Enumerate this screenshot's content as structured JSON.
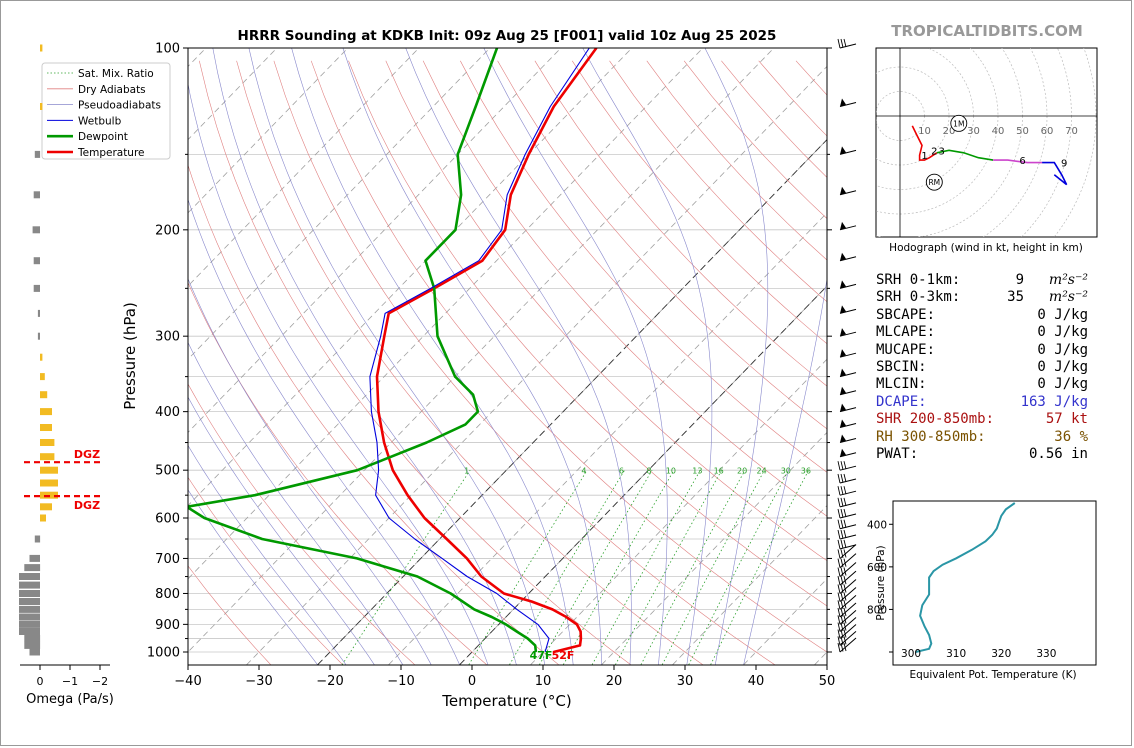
{
  "title": "HRRR Sounding at KDKB Init: 09z Aug 25 [F001] valid 10z Aug 25 2025",
  "brand": "TROPICALTIDBITS.COM",
  "skewt": {
    "xlabel": "Temperature (°C)",
    "ylabel": "Pressure (hPa)",
    "xticks": [
      "−40",
      "−30",
      "−20",
      "−10",
      "0",
      "10",
      "20",
      "30",
      "40",
      "50"
    ],
    "yticks": [
      "100",
      "200",
      "300",
      "400",
      "500",
      "600",
      "700",
      "800",
      "900",
      "1000"
    ],
    "surface_dewpoint_label": "47F",
    "surface_temp_label": "52F",
    "mixing_ratio_labels": [
      "1",
      "4",
      "6",
      "8",
      "10",
      "13",
      "16",
      "20",
      "24",
      "30",
      "36"
    ],
    "legend": [
      {
        "label": "Sat. Mix. Ratio",
        "color": "#2ca02c",
        "style": "dotted"
      },
      {
        "label": "Dry Adiabats",
        "color": "#e08080",
        "style": "solid-thin"
      },
      {
        "label": "Pseudoadiabats",
        "color": "#8888cc",
        "style": "solid-thin"
      },
      {
        "label": "Wetbulb",
        "color": "#0000dd",
        "style": "solid"
      },
      {
        "label": "Dewpoint",
        "color": "#009900",
        "style": "thick"
      },
      {
        "label": "Temperature",
        "color": "#ee0000",
        "style": "thick"
      }
    ]
  },
  "omega": {
    "xlabel": "Omega (Pa/s)",
    "xticks": [
      "0",
      "−1",
      "−2"
    ],
    "dgz_label_top": "DGZ",
    "dgz_label_bottom": "DGZ"
  },
  "hodograph": {
    "caption": "Hodograph (wind in kt, height in km)",
    "ring_labels": [
      "10",
      "20",
      "30",
      "40",
      "50",
      "60",
      "70"
    ],
    "marker_1m": "1M",
    "marker_rm": "RM",
    "height_labels": [
      "1",
      "2",
      "3",
      "6",
      "9"
    ]
  },
  "theta_e": {
    "xlabel": "Equivalent Pot. Temperature (K)",
    "ylabel": "Pressure (hPa)",
    "xticks": [
      "300",
      "310",
      "320",
      "330"
    ],
    "yticks": [
      "400",
      "600",
      "800"
    ]
  },
  "stats": [
    {
      "label": "SRH 0-1km:",
      "value": "9",
      "unit": "m²s⁻²",
      "color": "#000000"
    },
    {
      "label": "SRH 0-3km:",
      "value": "35",
      "unit": "m²s⁻²",
      "color": "#000000"
    },
    {
      "label": "SBCAPE:",
      "value": "0 J/kg",
      "unit": "",
      "color": "#000000"
    },
    {
      "label": "MLCAPE:",
      "value": "0 J/kg",
      "unit": "",
      "color": "#000000"
    },
    {
      "label": "MUCAPE:",
      "value": "0 J/kg",
      "unit": "",
      "color": "#000000"
    },
    {
      "label": "SBCIN:",
      "value": "0 J/kg",
      "unit": "",
      "color": "#000000"
    },
    {
      "label": "MLCIN:",
      "value": "0 J/kg",
      "unit": "",
      "color": "#000000"
    },
    {
      "label": "DCAPE:",
      "value": "163 J/kg",
      "unit": "",
      "color": "#3333cc"
    },
    {
      "label": "SHR 200-850mb:",
      "value": "57 kt",
      "unit": "",
      "color": "#aa1111"
    },
    {
      "label": "RH 300-850mb:",
      "value": "36 %",
      "unit": "",
      "color": "#7a5200"
    },
    {
      "label": "PWAT:",
      "value": "0.56 in",
      "unit": "",
      "color": "#000000"
    }
  ],
  "chart_data": [
    {
      "type": "line",
      "title": "HRRR Sounding at KDKB Init: 09z Aug 25 [F001] valid 10z Aug 25 2025",
      "xlabel": "Temperature (°C)",
      "ylabel": "Pressure (hPa)",
      "xlim": [
        -40,
        50
      ],
      "ylim": [
        1050,
        100
      ],
      "log_y": true,
      "skew": true,
      "series": [
        {
          "name": "Temperature",
          "color": "#ee0000",
          "points": [
            [
              1000,
              11.5
            ],
            [
              975,
              14.3
            ],
            [
              950,
              13.5
            ],
            [
              925,
              12.5
            ],
            [
              900,
              11
            ],
            [
              875,
              8.5
            ],
            [
              850,
              5.5
            ],
            [
              825,
              1.5
            ],
            [
              800,
              -3.5
            ],
            [
              750,
              -9
            ],
            [
              700,
              -13.5
            ],
            [
              650,
              -19
            ],
            [
              600,
              -25
            ],
            [
              550,
              -30.5
            ],
            [
              500,
              -36
            ],
            [
              450,
              -41
            ],
            [
              400,
              -46
            ],
            [
              350,
              -51
            ],
            [
              300,
              -55.5
            ],
            [
              275,
              -58
            ],
            [
              250,
              -55
            ],
            [
              225,
              -52
            ],
            [
              200,
              -53
            ],
            [
              175,
              -57
            ],
            [
              150,
              -60
            ],
            [
              125,
              -63
            ],
            [
              100,
              -65
            ]
          ]
        },
        {
          "name": "Dewpoint",
          "color": "#009900",
          "points": [
            [
              1000,
              9
            ],
            [
              975,
              8
            ],
            [
              950,
              6
            ],
            [
              925,
              3.5
            ],
            [
              900,
              1
            ],
            [
              875,
              -2
            ],
            [
              850,
              -5.5
            ],
            [
              800,
              -11
            ],
            [
              750,
              -18
            ],
            [
              700,
              -29
            ],
            [
              650,
              -45
            ],
            [
              600,
              -56
            ],
            [
              575,
              -60
            ],
            [
              550,
              -52
            ],
            [
              500,
              -41
            ],
            [
              450,
              -35
            ],
            [
              420,
              -32
            ],
            [
              400,
              -32
            ],
            [
              375,
              -35
            ],
            [
              350,
              -40
            ],
            [
              300,
              -48
            ],
            [
              250,
              -55
            ],
            [
              225,
              -60
            ],
            [
              200,
              -60
            ],
            [
              175,
              -64
            ],
            [
              150,
              -70
            ],
            [
              125,
              -74
            ],
            [
              100,
              -79
            ]
          ]
        },
        {
          "name": "Wetbulb",
          "color": "#0000dd",
          "points": [
            [
              1000,
              10.3
            ],
            [
              950,
              9
            ],
            [
              900,
              5.5
            ],
            [
              850,
              0.5
            ],
            [
              800,
              -4.5
            ],
            [
              750,
              -11
            ],
            [
              700,
              -17
            ],
            [
              650,
              -23.5
            ],
            [
              600,
              -30
            ],
            [
              550,
              -35
            ],
            [
              500,
              -38
            ],
            [
              450,
              -42
            ],
            [
              400,
              -47
            ],
            [
              350,
              -52
            ],
            [
              300,
              -56
            ],
            [
              275,
              -58.5
            ],
            [
              250,
              -55.5
            ],
            [
              225,
              -52.5
            ],
            [
              200,
              -53.5
            ],
            [
              175,
              -57.5
            ],
            [
              150,
              -60.5
            ],
            [
              125,
              -63.5
            ],
            [
              100,
              -66
            ]
          ]
        }
      ]
    },
    {
      "type": "bar",
      "title": "",
      "xlabel": "Omega (Pa/s)",
      "ylabel": "",
      "xlim": [
        0.3,
        -2.2
      ],
      "series": [
        {
          "name": "",
          "values_by_pressure": [
            [
              1000,
              0.1
            ],
            [
              975,
              0.15
            ],
            [
              950,
              0.15
            ],
            [
              925,
              0.2
            ],
            [
              900,
              0.2
            ],
            [
              875,
              0.2
            ],
            [
              850,
              0.2
            ],
            [
              825,
              0.2
            ],
            [
              800,
              0.2
            ],
            [
              775,
              0.2
            ],
            [
              750,
              0.2
            ],
            [
              725,
              0.15
            ],
            [
              700,
              0.1
            ],
            [
              650,
              0.05
            ],
            [
              600,
              -0.05
            ],
            [
              575,
              -0.1
            ],
            [
              550,
              -0.15
            ],
            [
              525,
              -0.15
            ],
            [
              500,
              -0.15
            ],
            [
              475,
              -0.12
            ],
            [
              450,
              -0.12
            ],
            [
              425,
              -0.1
            ],
            [
              400,
              -0.1
            ],
            [
              375,
              -0.06
            ],
            [
              350,
              -0.04
            ],
            [
              325,
              -0.02
            ],
            [
              300,
              0.02
            ],
            [
              275,
              0.02
            ],
            [
              250,
              0.06
            ],
            [
              225,
              0.06
            ],
            [
              200,
              0.07
            ],
            [
              175,
              0.06
            ],
            [
              150,
              0.05
            ],
            [
              125,
              -0.02
            ],
            [
              100,
              -0.02
            ]
          ]
        }
      ],
      "dgz_top_hPa": 485,
      "dgz_bottom_hPa": 552
    },
    {
      "type": "line",
      "title": "Hodograph (wind in kt, height in km)",
      "xlabel": "",
      "ylabel": "",
      "xlim": [
        -10,
        80
      ],
      "ylim": [
        -50,
        28
      ],
      "series": [
        {
          "name": "0-3 km",
          "color": "#ee0000",
          "points": [
            [
              5,
              -4
            ],
            [
              7,
              -8
            ],
            [
              9,
              -12
            ],
            [
              8,
              -16
            ],
            [
              8,
              -18
            ],
            [
              10,
              -18
            ],
            [
              12,
              -17
            ],
            [
              15,
              -15
            ]
          ]
        },
        {
          "name": "3-6 km",
          "color": "#009900",
          "points": [
            [
              15,
              -15
            ],
            [
              20,
              -14
            ],
            [
              26,
              -15
            ],
            [
              32,
              -17
            ],
            [
              38,
              -18
            ]
          ]
        },
        {
          "name": "6-9 km",
          "color": "#cc44cc",
          "points": [
            [
              38,
              -18
            ],
            [
              44,
              -18
            ],
            [
              52,
              -19
            ],
            [
              58,
              -19
            ]
          ]
        },
        {
          "name": "9+ km",
          "color": "#0000dd",
          "points": [
            [
              58,
              -19
            ],
            [
              63,
              -19
            ],
            [
              66,
              -24
            ],
            [
              68,
              -28
            ],
            [
              63,
              -24
            ]
          ]
        }
      ],
      "markers": [
        {
          "label": "1M",
          "x": 24,
          "y": -3
        },
        {
          "label": "RM",
          "x": 14,
          "y": -27
        }
      ]
    },
    {
      "type": "line",
      "title": "",
      "xlabel": "Equivalent Pot. Temperature (K)",
      "ylabel": "Pressure (hPa)",
      "xlim": [
        296,
        341
      ],
      "ylim": [
        1000,
        300
      ],
      "series": [
        {
          "name": "",
          "color": "#2a96a6",
          "points": [
            [
              1000,
              301
            ],
            [
              985,
              304
            ],
            [
              960,
              304.5
            ],
            [
              920,
              304
            ],
            [
              880,
              303
            ],
            [
              830,
              302
            ],
            [
              780,
              302.5
            ],
            [
              730,
              304
            ],
            [
              690,
              304
            ],
            [
              650,
              304
            ],
            [
              620,
              305
            ],
            [
              590,
              307
            ],
            [
              560,
              310
            ],
            [
              520,
              313.5
            ],
            [
              480,
              316.5
            ],
            [
              450,
              318
            ],
            [
              420,
              319
            ],
            [
              390,
              319.5
            ],
            [
              360,
              320
            ],
            [
              330,
              321
            ],
            [
              300,
              323
            ]
          ]
        }
      ]
    }
  ]
}
